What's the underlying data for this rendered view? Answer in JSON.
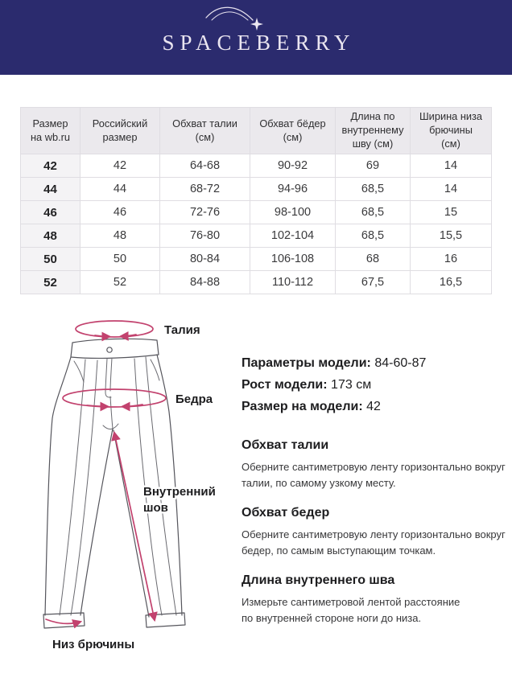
{
  "colors": {
    "brand_navy": "#2b2b6e",
    "accent_pink": "#c2426e"
  },
  "header": {
    "brand": "SPACEBERRY",
    "comet_icon": "shooting-star-icon"
  },
  "size_table": {
    "columns": [
      "Размер\nна wb.ru",
      "Российский\nразмер",
      "Обхват талии\n(см)",
      "Обхват бёдер\n(см)",
      "Длина по\nвнутреннему\nшву (см)",
      "Ширина низа\nбрючины\n(см)"
    ],
    "rows": [
      [
        "42",
        "42",
        "64-68",
        "90-92",
        "69",
        "14"
      ],
      [
        "44",
        "44",
        "68-72",
        "94-96",
        "68,5",
        "14"
      ],
      [
        "46",
        "46",
        "72-76",
        "98-100",
        "68,5",
        "15"
      ],
      [
        "48",
        "48",
        "76-80",
        "102-104",
        "68,5",
        "15,5"
      ],
      [
        "50",
        "50",
        "80-84",
        "106-108",
        "68",
        "16"
      ],
      [
        "52",
        "52",
        "84-88",
        "110-112",
        "67,5",
        "16,5"
      ]
    ]
  },
  "diagram": {
    "labels": {
      "waist": "Талия",
      "hips": "Бедра",
      "inseam_line1": "Внутренний",
      "inseam_line2": "шов",
      "hem": "Низ брючины"
    }
  },
  "model_info": [
    {
      "label": "Параметры модели:",
      "value": "84-60-87"
    },
    {
      "label": "Рост модели:",
      "value": "173 см"
    },
    {
      "label": "Размер на модели:",
      "value": "42"
    }
  ],
  "guide": {
    "sections": [
      {
        "title": "Обхват талии",
        "body": "Оберните сантиметровую ленту горизонтально вокруг\nталии, по самому узкому месту."
      },
      {
        "title": "Обхват бедер",
        "body": "Оберните сантиметровую ленту горизонтально вокруг\nбедер, по самым выступающим точкам."
      },
      {
        "title": "Длина внутреннего шва",
        "body": "Измерьте сантиметровой лентой расстояние\nпо внутренней стороне ноги до низа."
      }
    ]
  }
}
